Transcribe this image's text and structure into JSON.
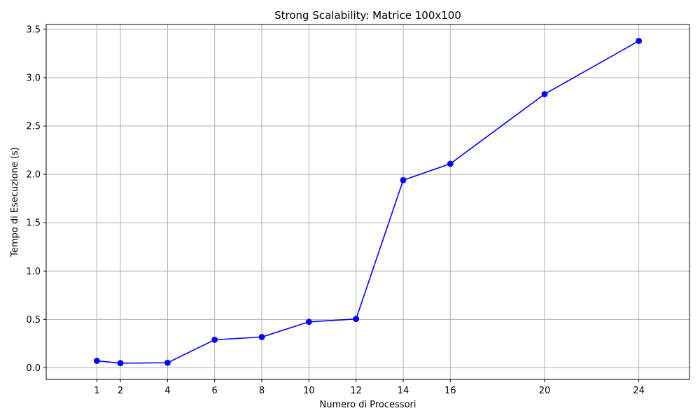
{
  "chart_data": {
    "type": "line",
    "title": "Strong Scalability: Matrice 100x100",
    "xlabel": "Numero di Processori",
    "ylabel": "Tempo di Esecuzione (s)",
    "xlim": [
      -1.15,
      26.15
    ],
    "ylim": [
      -0.12,
      3.55
    ],
    "x_ticks": [
      1,
      2,
      4,
      6,
      8,
      10,
      12,
      14,
      16,
      20,
      24
    ],
    "x_tick_labels": [
      "1",
      "2",
      "4",
      "6",
      "8",
      "10",
      "12",
      "14",
      "16",
      "20",
      "24"
    ],
    "y_ticks": [
      0.0,
      0.5,
      1.0,
      1.5,
      2.0,
      2.5,
      3.0,
      3.5
    ],
    "y_tick_labels": [
      "0.0",
      "0.5",
      "1.0",
      "1.5",
      "2.0",
      "2.5",
      "3.0",
      "3.5"
    ],
    "grid": true,
    "series": [
      {
        "color": "#0000ff",
        "marker": "circle",
        "x": [
          1,
          2,
          4,
          6,
          8,
          10,
          12,
          14,
          16,
          20,
          24
        ],
        "y": [
          0.072,
          0.048,
          0.052,
          0.29,
          0.318,
          0.475,
          0.505,
          1.94,
          2.11,
          2.83,
          3.38
        ]
      }
    ]
  }
}
